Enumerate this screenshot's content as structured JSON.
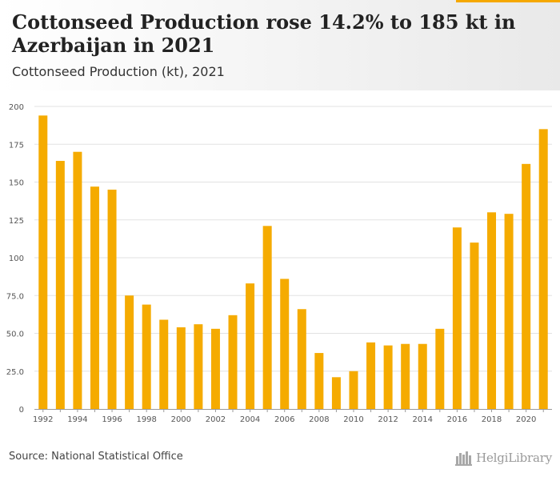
{
  "header": {
    "title": "Cottonseed Production rose 14.2% to 185 kt in Azerbaijan in 2021",
    "subtitle": "Cottonseed Production (kt), 2021"
  },
  "footer": {
    "source": "Source: National Statistical Office",
    "brand": "HelgiLibrary",
    "brand_icon": "helgi-library-logo-icon"
  },
  "colors": {
    "bar": "#f5ab00",
    "grid": "#e2e2e2",
    "axis": "#9a9a9a",
    "tick_text": "#555555"
  },
  "chart_data": {
    "type": "bar",
    "title": "Cottonseed Production (kt), 2021",
    "xlabel": "",
    "ylabel": "",
    "ylim": [
      0,
      200
    ],
    "yticks": [
      "0",
      "25.0",
      "50.0",
      "75.0",
      "100",
      "125",
      "150",
      "175",
      "200"
    ],
    "ytick_values": [
      0,
      25,
      50,
      75,
      100,
      125,
      150,
      175,
      200
    ],
    "categories": [
      "1992",
      "1993",
      "1994",
      "1995",
      "1996",
      "1997",
      "1998",
      "1999",
      "2000",
      "2001",
      "2002",
      "2003",
      "2004",
      "2005",
      "2006",
      "2007",
      "2008",
      "2009",
      "2010",
      "2011",
      "2012",
      "2013",
      "2014",
      "2015",
      "2016",
      "2017",
      "2018",
      "2019",
      "2020",
      "2021"
    ],
    "xtick_labels": [
      "1992",
      "",
      "1994",
      "",
      "1996",
      "",
      "1998",
      "",
      "2000",
      "",
      "2002",
      "",
      "2004",
      "",
      "2006",
      "",
      "2008",
      "",
      "2010",
      "",
      "2012",
      "",
      "2014",
      "",
      "2016",
      "",
      "2018",
      "",
      "2020",
      ""
    ],
    "values": [
      194,
      164,
      170,
      147,
      145,
      75,
      69,
      59,
      54,
      56,
      53,
      62,
      83,
      121,
      86,
      66,
      37,
      21,
      25,
      44,
      42,
      43,
      43,
      53,
      120,
      110,
      130,
      129,
      162,
      185
    ],
    "grid": true,
    "legend": "none"
  }
}
